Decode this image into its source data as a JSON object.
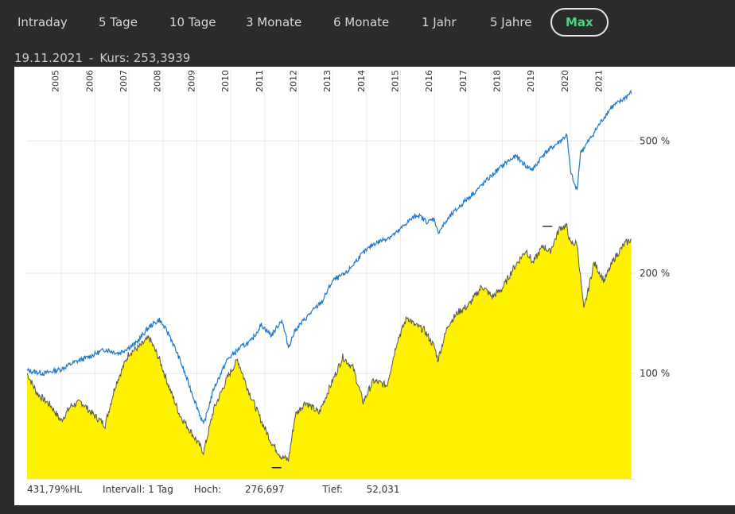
{
  "tabs": [
    "Intraday",
    "5 Tage",
    "10 Tage",
    "3 Monate",
    "6 Monate",
    "1 Jahr",
    "5 Jahre",
    "Max"
  ],
  "active_tab": "Max",
  "quote": {
    "date": "19.11.2021",
    "separator": "-",
    "label": "Kurs:",
    "value": "253,3939"
  },
  "footer": {
    "hl": "431,79%HL",
    "interval": "Intervall: 1 Tag",
    "high_label": "Hoch:",
    "high_value": "276,697",
    "low_label": "Tief:",
    "low_value": "52,031"
  },
  "colors": {
    "benchmark": "#1f78c8",
    "price_line": "#555555",
    "price_fill": "#fff200",
    "active_tab": "#4fd27d"
  },
  "chart_data": {
    "type": "area",
    "xlim": [
      2004.0,
      2021.9
    ],
    "years": [
      "2005",
      "2006",
      "2007",
      "2008",
      "2009",
      "2010",
      "2011",
      "2012",
      "2013",
      "2014",
      "2015",
      "2016",
      "2017",
      "2018",
      "2019",
      "2020",
      "2021"
    ],
    "y_scale": "log",
    "y_ticks": [
      {
        "value": 100,
        "label": "100 %"
      },
      {
        "value": 200,
        "label": "200 %"
      },
      {
        "value": 500,
        "label": "500 %"
      }
    ],
    "ylim": [
      52,
      700
    ],
    "series": [
      {
        "style": "area",
        "x": [
          2004.0,
          2004.3,
          2004.7,
          2005.0,
          2005.3,
          2005.6,
          2005.9,
          2006.3,
          2006.6,
          2007.0,
          2007.3,
          2007.6,
          2007.9,
          2008.2,
          2008.5,
          2008.9,
          2009.2,
          2009.5,
          2009.9,
          2010.2,
          2010.5,
          2010.9,
          2011.2,
          2011.5,
          2011.7,
          2011.9,
          2012.2,
          2012.6,
          2012.9,
          2013.3,
          2013.6,
          2013.9,
          2014.2,
          2014.6,
          2014.9,
          2015.2,
          2015.4,
          2015.7,
          2016.0,
          2016.1,
          2016.4,
          2016.7,
          2017.0,
          2017.4,
          2017.7,
          2018.0,
          2018.3,
          2018.7,
          2018.9,
          2019.2,
          2019.4,
          2019.7,
          2019.9,
          2020.0,
          2020.2,
          2020.4,
          2020.7,
          2021.0,
          2021.3,
          2021.6,
          2021.8
        ],
        "y": [
          100,
          87,
          80,
          72,
          80,
          82,
          76,
          70,
          92,
          115,
          120,
          128,
          110,
          90,
          75,
          65,
          58,
          78,
          97,
          110,
          90,
          72,
          62,
          56,
          55,
          75,
          82,
          76,
          90,
          112,
          104,
          82,
          95,
          92,
          125,
          148,
          140,
          135,
          120,
          110,
          140,
          153,
          160,
          183,
          170,
          180,
          205,
          235,
          215,
          242,
          232,
          275,
          276,
          246,
          246,
          155,
          215,
          190,
          222,
          245,
          253
        ]
      },
      {
        "style": "line",
        "x": [
          2004.0,
          2004.5,
          2005.0,
          2005.4,
          2005.8,
          2006.3,
          2006.7,
          2007.2,
          2007.6,
          2007.9,
          2008.2,
          2008.5,
          2008.9,
          2009.2,
          2009.5,
          2009.9,
          2010.3,
          2010.6,
          2010.9,
          2011.2,
          2011.5,
          2011.7,
          2011.9,
          2012.3,
          2012.7,
          2013.0,
          2013.4,
          2013.8,
          2014.2,
          2014.6,
          2014.9,
          2015.2,
          2015.5,
          2015.8,
          2016.0,
          2016.1,
          2016.5,
          2016.9,
          2017.3,
          2017.7,
          2018.1,
          2018.4,
          2018.7,
          2018.9,
          2019.2,
          2019.6,
          2019.9,
          2020.0,
          2020.1,
          2020.2,
          2020.3,
          2020.6,
          2020.9,
          2021.2,
          2021.5,
          2021.8
        ],
        "y": [
          102,
          100,
          103,
          108,
          112,
          118,
          115,
          123,
          138,
          145,
          130,
          110,
          85,
          70,
          90,
          110,
          120,
          125,
          140,
          130,
          145,
          120,
          135,
          150,
          165,
          190,
          200,
          225,
          245,
          255,
          265,
          285,
          300,
          285,
          292,
          265,
          300,
          330,
          360,
          395,
          430,
          450,
          420,
          410,
          455,
          490,
          520,
          410,
          375,
          355,
          460,
          510,
          570,
          630,
          660,
          700
        ]
      }
    ],
    "annotations": [
      {
        "type": "max-marker",
        "x": 2019.33,
        "y": 276.697
      },
      {
        "type": "min-marker",
        "x": 2011.35,
        "y": 52.031
      }
    ]
  }
}
